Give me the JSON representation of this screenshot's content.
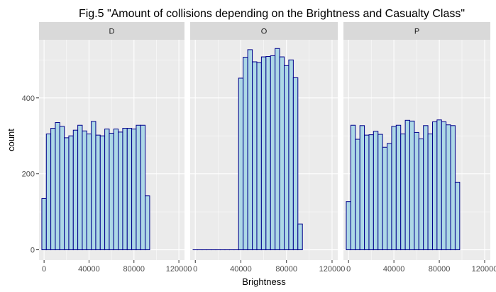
{
  "chart_data": {
    "type": "bar",
    "subtype": "faceted-histogram",
    "title": "Fig.5 \"Amount of collisions depending on the Brightness and Casualty Class\"",
    "xlabel": "Brightness",
    "ylabel": "count",
    "x_ticks": [
      0,
      40000,
      80000,
      120000
    ],
    "x_tick_labels": [
      "0",
      "40000",
      "80000",
      "120000"
    ],
    "y_ticks": [
      0,
      200,
      400
    ],
    "y_tick_labels": [
      "0",
      "200",
      "400"
    ],
    "xlim": [
      -4500,
      125000
    ],
    "ylim": [
      -27,
      553
    ],
    "bin_width": 4000,
    "bin_start": -2000,
    "grid": true,
    "colors": {
      "bar_fill": "#add8e6",
      "bar_stroke": "#00008b",
      "panel_bg": "#ebebeb",
      "strip_bg": "#d9d9d9",
      "grid": "#ffffff"
    },
    "facets": [
      {
        "name": "D",
        "values": [
          135,
          305,
          320,
          335,
          325,
          295,
          300,
          315,
          328,
          313,
          305,
          338,
          302,
          300,
          318,
          307,
          318,
          310,
          320,
          320,
          318,
          328,
          328,
          142
        ]
      },
      {
        "name": "O",
        "values": [
          0,
          0,
          0,
          0,
          0,
          0,
          0,
          0,
          0,
          0,
          452,
          507,
          527,
          495,
          493,
          508,
          509,
          511,
          530,
          508,
          485,
          500,
          453,
          68
        ]
      },
      {
        "name": "P",
        "values": [
          127,
          328,
          291,
          327,
          302,
          303,
          312,
          304,
          270,
          280,
          325,
          328,
          305,
          341,
          339,
          309,
          292,
          327,
          305,
          337,
          342,
          337,
          329,
          327,
          178
        ]
      }
    ]
  }
}
